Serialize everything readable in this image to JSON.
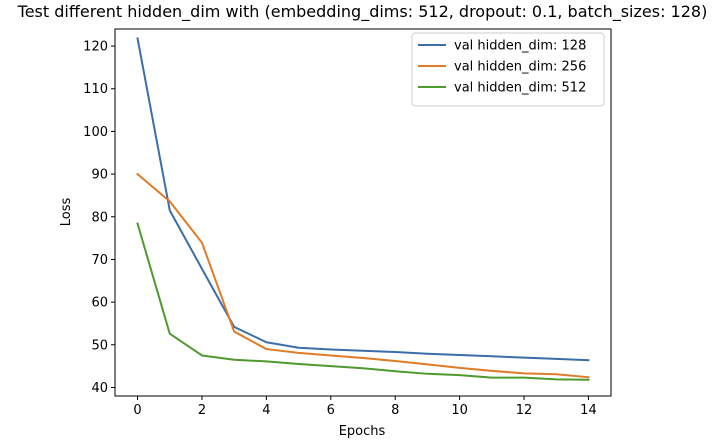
{
  "chart_data": {
    "type": "line",
    "title": "Test different hidden_dim with (embedding_dims: 512, dropout: 0.1, batch_sizes: 128)",
    "xlabel": "Epochs",
    "ylabel": "Loss",
    "xlim": [
      -0.7,
      14.7
    ],
    "ylim": [
      38.0,
      124.0
    ],
    "xticks": [
      0,
      2,
      4,
      6,
      8,
      10,
      12,
      14
    ],
    "yticks": [
      40,
      50,
      60,
      70,
      80,
      90,
      100,
      110,
      120
    ],
    "grid": false,
    "legend_position": "top-right",
    "x": [
      0,
      1,
      2,
      3,
      4,
      5,
      6,
      7,
      8,
      9,
      10,
      11,
      12,
      13,
      14
    ],
    "series": [
      {
        "name": "val hidden_dim: 128",
        "color": "#3b6ea8",
        "values": [
          121.8,
          81.5,
          67.8,
          54.2,
          50.6,
          49.3,
          48.9,
          48.6,
          48.3,
          47.9,
          47.6,
          47.3,
          47.0,
          46.7,
          46.4
        ]
      },
      {
        "name": "val hidden_dim: 256",
        "color": "#e07b28",
        "values": [
          90.0,
          83.6,
          73.9,
          53.1,
          49.0,
          48.1,
          47.5,
          46.9,
          46.2,
          45.4,
          44.6,
          43.9,
          43.3,
          43.1,
          42.4
        ]
      },
      {
        "name": "val hidden_dim: 512",
        "color": "#4e9a2e",
        "values": [
          78.4,
          52.6,
          47.5,
          46.5,
          46.1,
          45.5,
          45.0,
          44.5,
          43.8,
          43.2,
          42.9,
          42.3,
          42.3,
          41.9,
          41.8
        ]
      }
    ]
  }
}
